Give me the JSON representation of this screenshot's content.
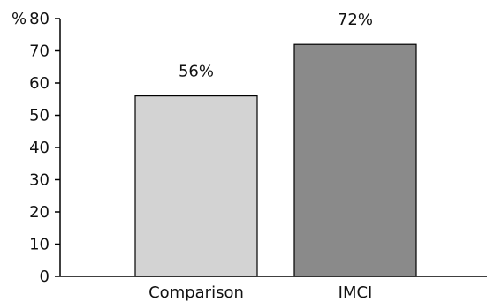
{
  "chart_data": {
    "type": "bar",
    "y_unit_label": "%",
    "categories": [
      "Comparison",
      "IMCI"
    ],
    "values": [
      56,
      72
    ],
    "data_labels": [
      "56%",
      "72%"
    ],
    "colors": [
      "#d3d3d3",
      "#8a8a8a"
    ],
    "ylim": [
      0,
      80
    ],
    "yticks": [
      0,
      10,
      20,
      30,
      40,
      50,
      60,
      70,
      80
    ],
    "ytick_labels": [
      "0",
      "10",
      "20",
      "30",
      "40",
      "50",
      "60",
      "70",
      "80"
    ],
    "grid": false,
    "legend": "none"
  }
}
